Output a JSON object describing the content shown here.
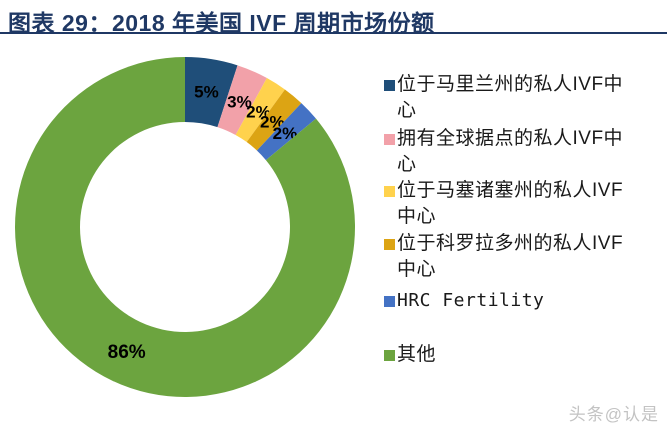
{
  "page": {
    "background": "#FFFFFF",
    "watermark": "头条@认是",
    "watermark_color": "#C3C3C3"
  },
  "header": {
    "title": "图表 29：2018 年美国 IVF 周期市场份额",
    "title_color": "#1F3864",
    "underline_color": "#1F3864"
  },
  "chart_data": {
    "type": "pie",
    "subtype": "donut",
    "title": "2018 年美国 IVF 周期市场份额",
    "categories": [
      "位于马里兰州的私人IVF中心",
      "拥有全球据点的私人IVF中心",
      "位于马塞诸塞州的私人IVF中心",
      "位于科罗拉多州的私人IVF中心",
      "HRC Fertility",
      "其他"
    ],
    "values": [
      5,
      3,
      2,
      2,
      2,
      86
    ],
    "labels": [
      "5%",
      "3%",
      "2%",
      "2%",
      "2%",
      "86%"
    ],
    "colors": [
      "#1F4E79",
      "#F2A1A9",
      "#FFD24D",
      "#DCA414",
      "#4472C4",
      "#6CA43F"
    ],
    "unit": "%",
    "start_angle_deg": 0,
    "direction": "clockwise",
    "legend_position": "right",
    "label_color": "#000000"
  },
  "legend": {
    "items": [
      {
        "label": "位于马里兰州的私人IVF中心",
        "color": "#1F4E79"
      },
      {
        "label": "拥有全球据点的私人IVF中心",
        "color": "#F2A1A9"
      },
      {
        "label": "位于马塞诸塞州的私人IVF中心",
        "color": "#FFD24D"
      },
      {
        "label": "位于科罗拉多州的私人IVF中心",
        "color": "#DCA414"
      },
      {
        "label": "HRC Fertility",
        "color": "#4472C4"
      },
      {
        "label": "其他",
        "color": "#6CA43F"
      }
    ]
  }
}
